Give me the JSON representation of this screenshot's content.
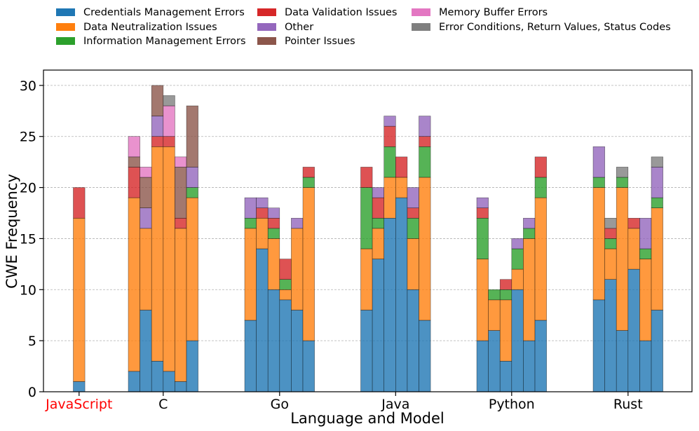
{
  "chart_data": {
    "type": "bar",
    "stacked": true,
    "title": "",
    "xlabel": "Language and Model",
    "ylabel": "CWE Frequency",
    "ylim": [
      0,
      31.5
    ],
    "yticks": [
      0,
      5,
      10,
      15,
      20,
      25,
      30
    ],
    "grid": "horizontal",
    "legend_position": "top",
    "categories": [
      "JavaScript",
      "C",
      "Go",
      "Java",
      "Python",
      "Rust"
    ],
    "highlighted_category": "JavaScript",
    "highlight_color": "#ff0000",
    "series": [
      {
        "name": "Credentials Management Errors",
        "color": "#1f77b4"
      },
      {
        "name": "Data Neutralization Issues",
        "color": "#ff7f0e"
      },
      {
        "name": "Information Management Errors",
        "color": "#2ca02c"
      },
      {
        "name": "Data Validation Issues",
        "color": "#d62728"
      },
      {
        "name": "Other",
        "color": "#9467bd"
      },
      {
        "name": "Pointer Issues",
        "color": "#8c564b"
      },
      {
        "name": "Memory Buffer Errors",
        "color": "#e377c2"
      },
      {
        "name": "Error Conditions, Return Values, Status Codes",
        "color": "#7f7f7f"
      }
    ],
    "groups": [
      {
        "category": "JavaScript",
        "bars": [
          [
            1,
            16,
            0,
            3,
            0,
            0,
            0,
            0
          ]
        ]
      },
      {
        "category": "C",
        "bars": [
          [
            2,
            17,
            0,
            3,
            0,
            1,
            2,
            0
          ],
          [
            8,
            8,
            0,
            0,
            2,
            3,
            1,
            0
          ],
          [
            3,
            21,
            0,
            1,
            2,
            3,
            0,
            0
          ],
          [
            2,
            22,
            0,
            1,
            0,
            0,
            3,
            1
          ],
          [
            1,
            15,
            0,
            1,
            0,
            5,
            1,
            0
          ],
          [
            5,
            14,
            1,
            0,
            2,
            6,
            0,
            0
          ]
        ]
      },
      {
        "category": "Go",
        "bars": [
          [
            7,
            9,
            1,
            0,
            2,
            0,
            0,
            0
          ],
          [
            14,
            3,
            0,
            1,
            1,
            0,
            0,
            0
          ],
          [
            10,
            5,
            1,
            1,
            1,
            0,
            0,
            0
          ],
          [
            9,
            1,
            1,
            2,
            0,
            0,
            0,
            0
          ],
          [
            8,
            8,
            0,
            0,
            1,
            0,
            0,
            0
          ],
          [
            5,
            15,
            1,
            1,
            0,
            0,
            0,
            0
          ]
        ]
      },
      {
        "category": "Java",
        "bars": [
          [
            8,
            6,
            6,
            2,
            0,
            0,
            0,
            0
          ],
          [
            13,
            3,
            1,
            2,
            1,
            0,
            0,
            0
          ],
          [
            17,
            4,
            3,
            2,
            1,
            0,
            0,
            0
          ],
          [
            19,
            2,
            0,
            2,
            0,
            0,
            0,
            0
          ],
          [
            10,
            5,
            2,
            1,
            2,
            0,
            0,
            0
          ],
          [
            7,
            14,
            3,
            1,
            2,
            0,
            0,
            0
          ]
        ]
      },
      {
        "category": "Python",
        "bars": [
          [
            5,
            8,
            4,
            1,
            1,
            0,
            0,
            0
          ],
          [
            6,
            3,
            1,
            0,
            0,
            0,
            0,
            0
          ],
          [
            3,
            6,
            1,
            1,
            0,
            0,
            0,
            0
          ],
          [
            10,
            2,
            2,
            0,
            1,
            0,
            0,
            0
          ],
          [
            5,
            10,
            1,
            0,
            1,
            0,
            0,
            0
          ],
          [
            7,
            12,
            2,
            2,
            0,
            0,
            0,
            0
          ]
        ]
      },
      {
        "category": "Rust",
        "bars": [
          [
            9,
            11,
            1,
            0,
            3,
            0,
            0,
            0
          ],
          [
            11,
            3,
            1,
            1,
            0,
            0,
            0,
            1
          ],
          [
            6,
            14,
            1,
            0,
            0,
            0,
            0,
            1
          ],
          [
            12,
            4,
            0,
            1,
            0,
            0,
            0,
            0
          ],
          [
            5,
            8,
            1,
            0,
            3,
            0,
            0,
            0
          ],
          [
            8,
            10,
            1,
            0,
            3,
            0,
            0,
            1
          ]
        ]
      }
    ]
  }
}
